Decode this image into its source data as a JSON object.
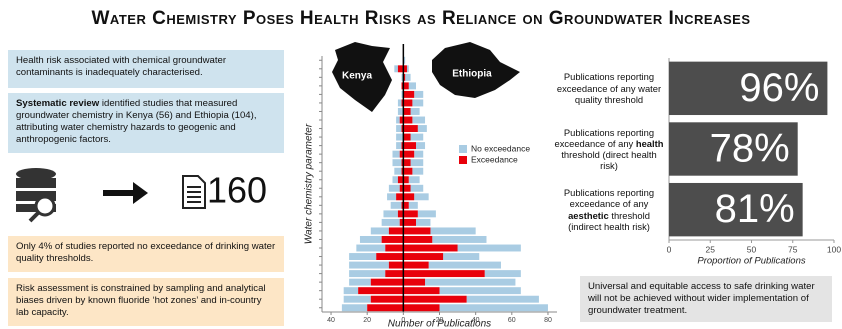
{
  "header": {
    "title": "Water Chemistry Poses Health Risks as Reliance on Groundwater Increases"
  },
  "panels": {
    "problem": "Health risk associated with chemical groundwater contaminants is inadequately characterised.",
    "review": [
      {
        "text": "Systematic review",
        "bold": true
      },
      {
        "text": " identified studies that measured groundwater chemistry in Kenya (56) and Ethiopia (104), attributing water chemistry hazards to geogenic and anthropogenic factors."
      }
    ],
    "study_count": "160",
    "finding": "Only 4% of studies reported no exceedance of drinking water quality thresholds.",
    "limitation": "Risk assessment is constrained by sampling and analytical biases driven by known fluoride ‘hot zones’ and in-country lab capacity.",
    "conclusion": "Universal and equitable access to safe drinking water will not be achieved without wider implementation of groundwater treatment."
  },
  "chart_data": [
    {
      "type": "pyramid",
      "x_label": "Number of Publications",
      "y_label": "Water chemistry parameter",
      "xlim": [
        -45,
        85
      ],
      "xticks": [
        {
          "value": -40,
          "label": "40"
        },
        {
          "value": -20,
          "label": "20"
        },
        0,
        20,
        40,
        60,
        80
      ],
      "categories": [
        null,
        null,
        null,
        null,
        null,
        null,
        null,
        null,
        null,
        null,
        null,
        null,
        null,
        null,
        null,
        null,
        null,
        null,
        null,
        null,
        null,
        null,
        null,
        null,
        null,
        null,
        null,
        null,
        null,
        null
      ],
      "legend": [
        {
          "name": "No exceedance",
          "color": "#a9cce3"
        },
        {
          "name": "Exceedance",
          "color": "#e8000b"
        }
      ],
      "groups": [
        {
          "label": "Kenya",
          "exceedance": [
            0,
            -3,
            0,
            -1,
            0,
            -1,
            0,
            -2,
            -1,
            0,
            -1,
            -2,
            -1,
            -1,
            -3,
            -2,
            -4,
            -1,
            -3,
            -2,
            -8,
            -12,
            -10,
            -15,
            -8,
            -10,
            -18,
            -25,
            -18,
            -20
          ],
          "no_exceedance": [
            0,
            -2,
            -1,
            0,
            -1,
            -2,
            -3,
            -2,
            -3,
            -4,
            -3,
            -4,
            -5,
            -4,
            -3,
            -6,
            -5,
            -6,
            -8,
            -10,
            -10,
            -12,
            -16,
            -15,
            -22,
            -20,
            -12,
            -8,
            -15,
            -14
          ]
        },
        {
          "label": "Ethiopia",
          "exceedance": [
            0,
            2,
            1,
            3,
            6,
            5,
            4,
            5,
            8,
            4,
            7,
            6,
            4,
            5,
            3,
            4,
            6,
            3,
            8,
            7,
            15,
            16,
            30,
            22,
            14,
            45,
            12,
            20,
            35,
            20
          ],
          "no_exceedance": [
            1,
            1,
            3,
            4,
            5,
            6,
            5,
            7,
            5,
            7,
            5,
            5,
            7,
            6,
            6,
            7,
            8,
            5,
            10,
            8,
            25,
            30,
            35,
            20,
            40,
            20,
            50,
            45,
            40,
            60
          ]
        }
      ]
    },
    {
      "type": "bar",
      "orientation": "horizontal",
      "x_label": "Proportion of Publications",
      "xlim": [
        0,
        100
      ],
      "xticks": [
        0,
        25,
        50,
        75,
        100
      ],
      "color": "#4d4d4d",
      "categories": [
        [
          {
            "text": "Publications reporting exceedance of any water quality threshold"
          }
        ],
        [
          {
            "text": "Publications reporting exceedance of any "
          },
          {
            "text": "health",
            "bold": true
          },
          {
            "text": " threshold (direct health risk)"
          }
        ],
        [
          {
            "text": "Publications reporting exceedance of any "
          },
          {
            "text": "aesthetic",
            "bold": true
          },
          {
            "text": " threshold (indirect health risk)"
          }
        ]
      ],
      "values": [
        96,
        78,
        81
      ],
      "value_labels": [
        "96%",
        "78%",
        "81%"
      ]
    }
  ]
}
